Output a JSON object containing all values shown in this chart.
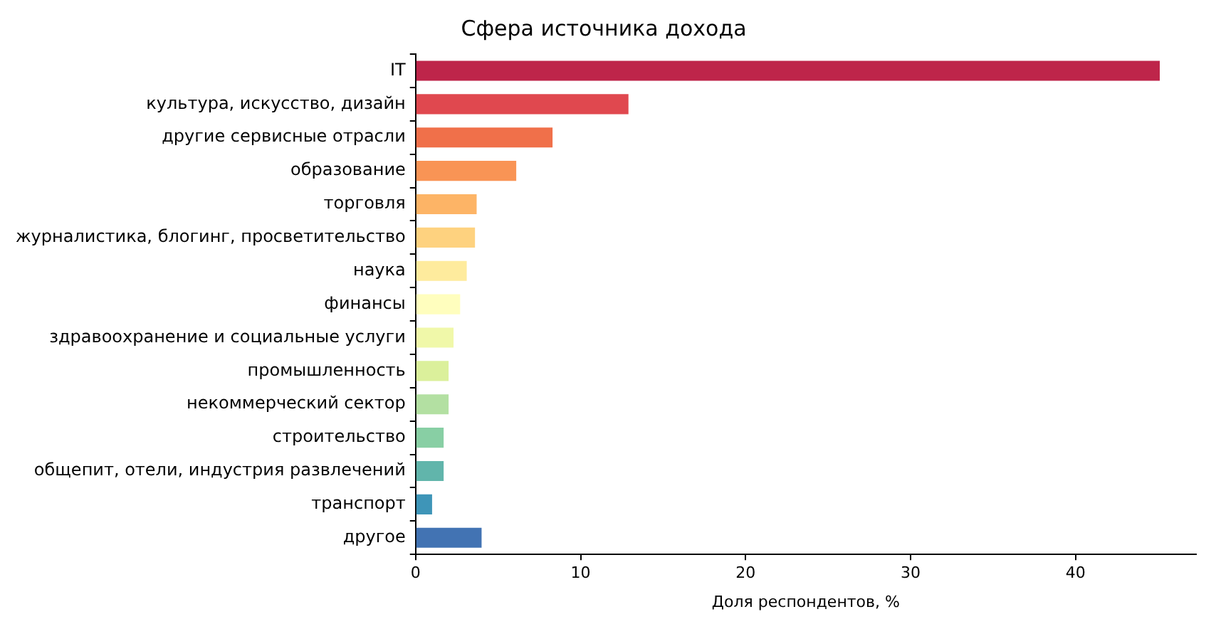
{
  "chart_data": {
    "type": "bar",
    "orientation": "horizontal",
    "title": "Сфера источника дохода",
    "xlabel": "Доля респондентов, %",
    "categories": [
      "IT",
      "культура, искусство, дизайн",
      "другие сервисные отрасли",
      "образование",
      "торговля",
      "журналистика, блогинг, просветительство",
      "наука",
      "финансы",
      "здравоохранение и социальные услуги",
      "промышленность",
      "некоммерческий сектор",
      "строительство",
      "общепит, отели, индустрия развлечений",
      "транспорт",
      "другое"
    ],
    "values": [
      45.1,
      12.9,
      8.3,
      6.1,
      3.7,
      3.6,
      3.1,
      2.7,
      2.3,
      2.0,
      2.0,
      1.7,
      1.7,
      1.0,
      4.0
    ],
    "colors": [
      "#be254a",
      "#e0484f",
      "#f0704a",
      "#f99455",
      "#fdb466",
      "#fed27f",
      "#feeb9d",
      "#fffebe",
      "#f0f8a9",
      "#dbf09b",
      "#b3e0a2",
      "#88cfa4",
      "#61b5ab",
      "#3e95b8",
      "#4273b3"
    ],
    "xlim": [
      0,
      47.3
    ],
    "xticks": [
      0,
      10,
      20,
      30,
      40
    ],
    "grid": false,
    "legend": false
  }
}
